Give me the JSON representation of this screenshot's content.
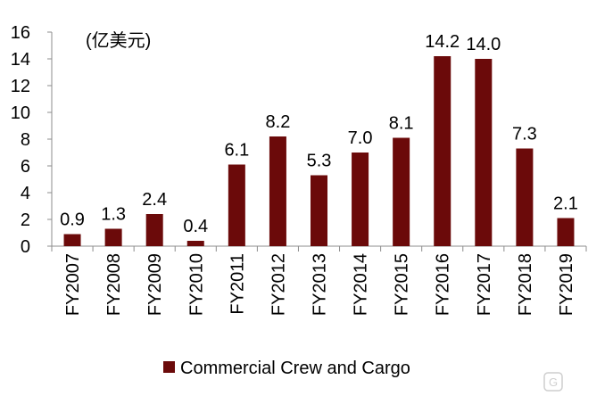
{
  "chart_data": {
    "type": "bar",
    "unit_label": "(亿美元)",
    "categories": [
      "FY2007",
      "FY2008",
      "FY2009",
      "FY2010",
      "FY2011",
      "FY2012",
      "FY2013",
      "FY2014",
      "FY2015",
      "FY2016",
      "FY2017",
      "FY2018",
      "FY2019"
    ],
    "series": [
      {
        "name": "Commercial Crew and Cargo",
        "values": [
          0.9,
          1.3,
          2.4,
          0.4,
          6.1,
          8.2,
          5.3,
          7.0,
          8.1,
          14.2,
          14.0,
          7.3,
          2.1
        ],
        "labels": [
          "0.9",
          "1.3",
          "2.4",
          "0.4",
          "6.1",
          "8.2",
          "5.3",
          "7.0",
          "8.1",
          "14.2",
          "14.0",
          "7.3",
          "2.1"
        ]
      }
    ],
    "ylim": [
      0,
      16
    ],
    "yticks": [
      "0",
      "2",
      "4",
      "6",
      "8",
      "10",
      "12",
      "14",
      "16"
    ],
    "grid": false,
    "legend_position": "bottom",
    "colors": {
      "bar": "#6B0A0A",
      "axis": "#8c8c8c"
    }
  },
  "watermark": "格隆汇"
}
